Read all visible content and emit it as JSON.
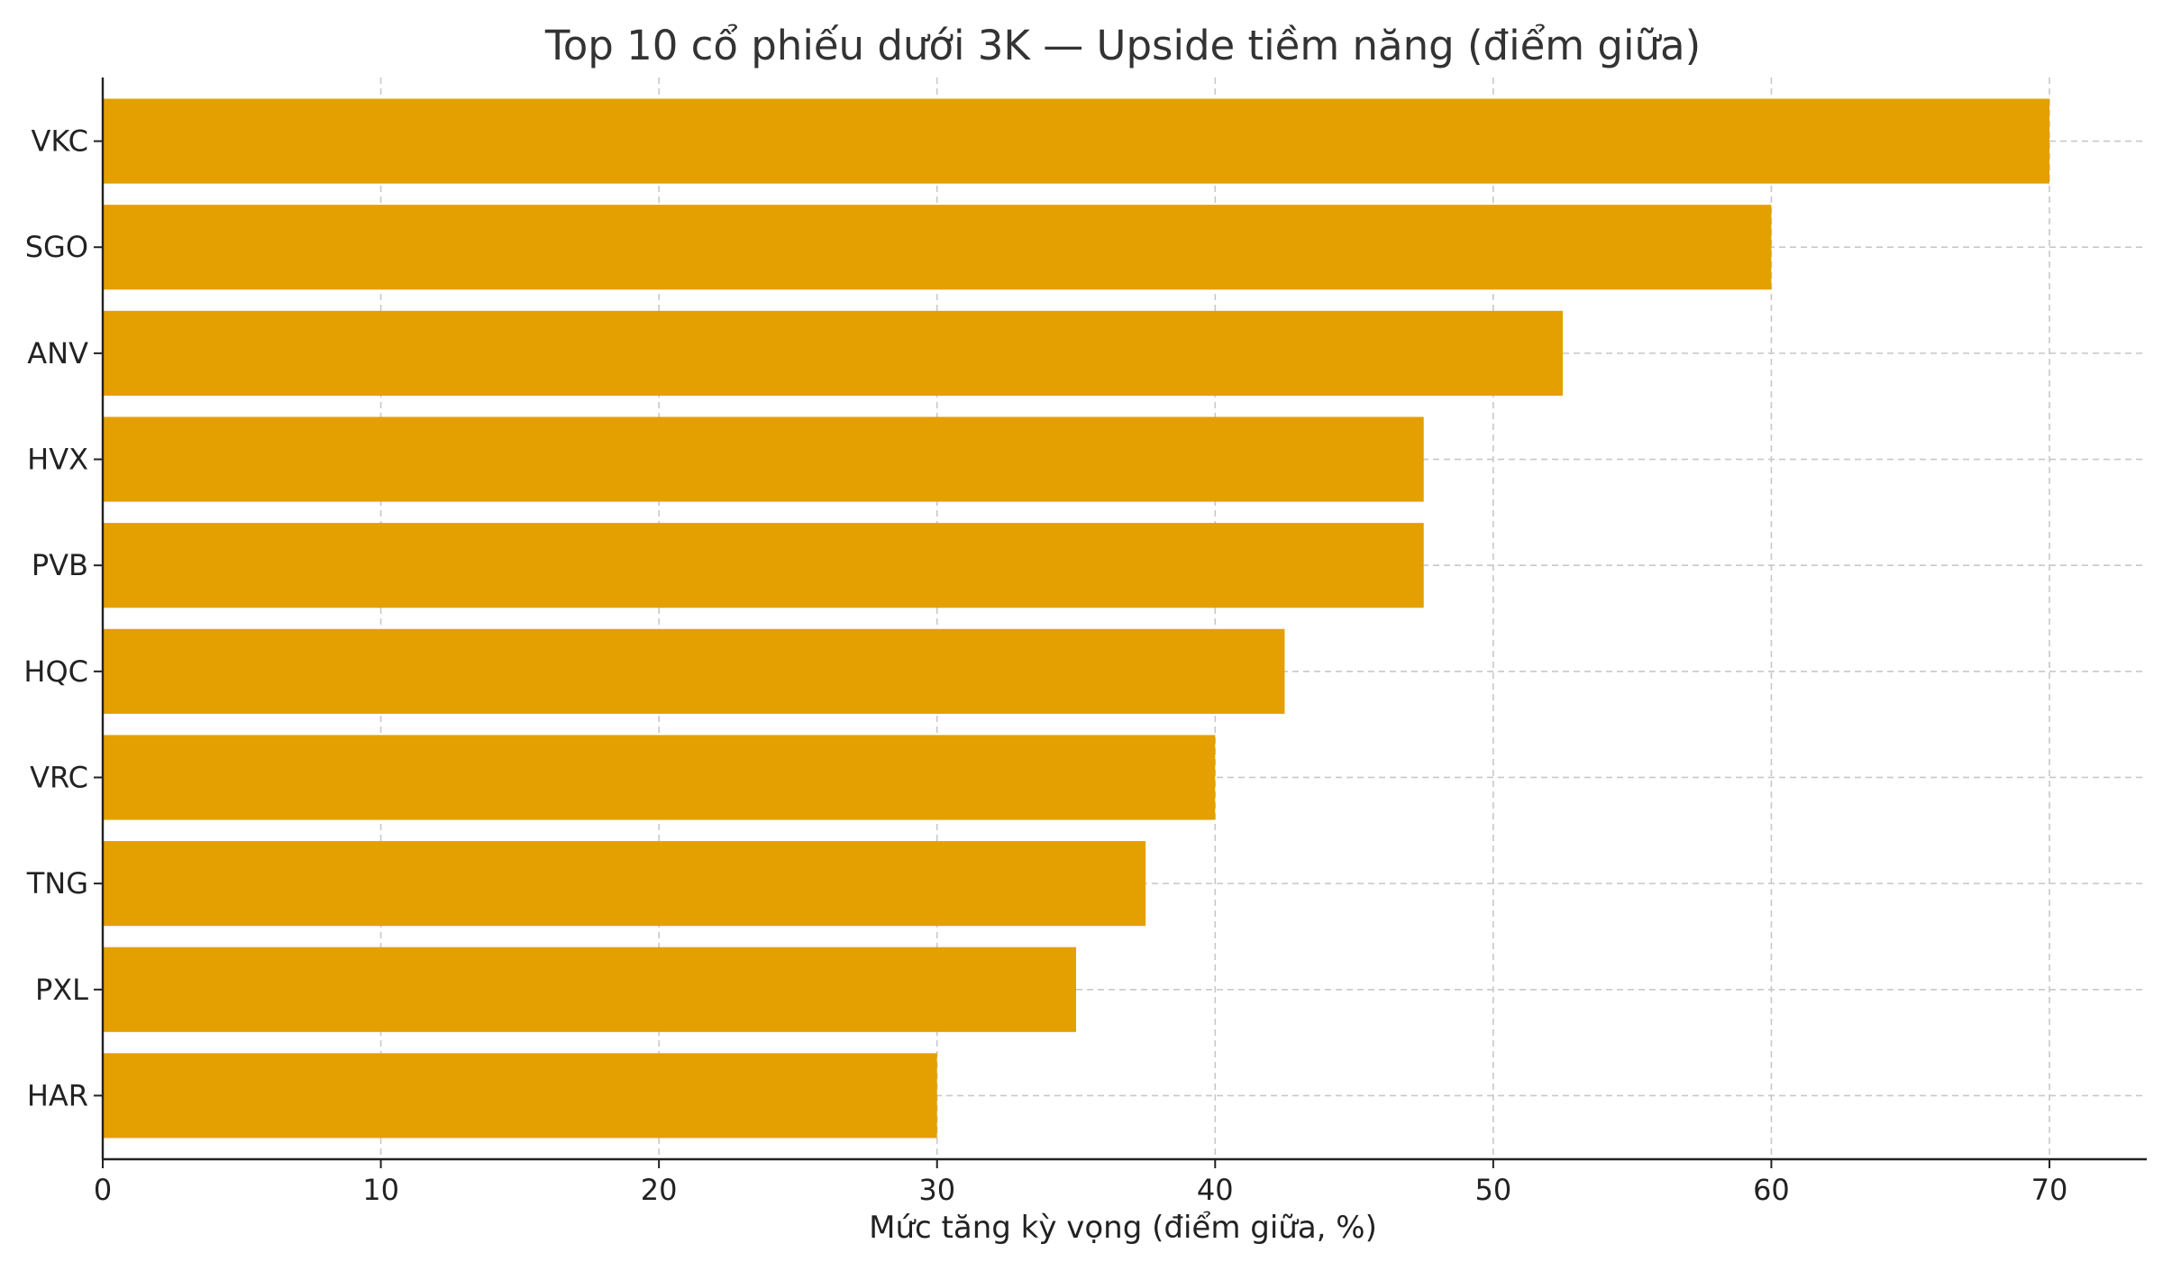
{
  "chart_data": {
    "type": "bar",
    "orientation": "horizontal",
    "title": "Top 10 cổ phiếu dưới 3K — Upside tiềm năng (điểm giữa)",
    "xlabel": "Mức tăng kỳ vọng (điểm giữa, %)",
    "ylabel": "",
    "categories": [
      "VKC",
      "SGO",
      "ANV",
      "HVX",
      "PVB",
      "HQC",
      "VRC",
      "TNG",
      "PXL",
      "HAR"
    ],
    "values": [
      70,
      60,
      52.5,
      47.5,
      47.5,
      42.5,
      40,
      37.5,
      35,
      30
    ],
    "xlim": [
      0,
      73.5
    ],
    "xticks": [
      0,
      10,
      20,
      30,
      40,
      50,
      60,
      70
    ],
    "grid": true,
    "bar_color": "#E3A000"
  }
}
